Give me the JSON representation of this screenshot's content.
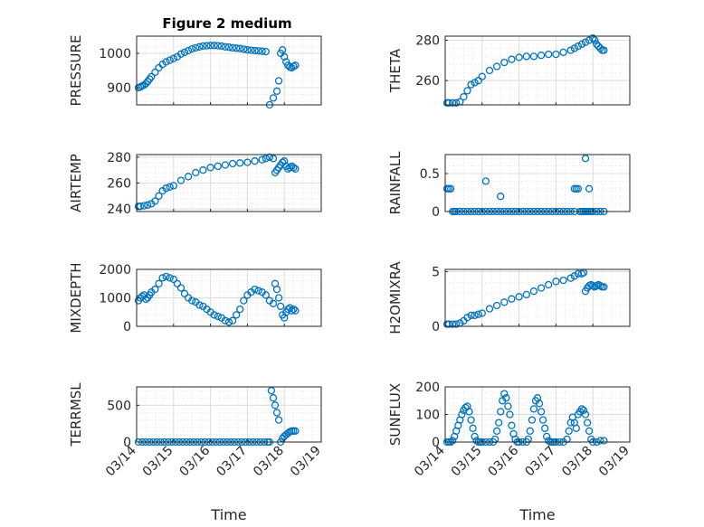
{
  "chart_data": [
    {
      "type": "scatter",
      "title": "Figure 2 medium",
      "ylabel": "PRESSURE",
      "xlim": [
        0,
        5
      ],
      "ylim": [
        850,
        1050
      ],
      "yticks": [
        900,
        1000
      ],
      "x": [
        0.05,
        0.1,
        0.15,
        0.2,
        0.25,
        0.3,
        0.35,
        0.4,
        0.5,
        0.6,
        0.7,
        0.8,
        0.9,
        1.0,
        1.1,
        1.2,
        1.3,
        1.4,
        1.5,
        1.6,
        1.7,
        1.8,
        1.9,
        2.0,
        2.1,
        2.2,
        2.3,
        2.4,
        2.5,
        2.6,
        2.7,
        2.8,
        2.9,
        3.0,
        3.1,
        3.2,
        3.3,
        3.4,
        3.5,
        3.6,
        3.7,
        3.8,
        3.85,
        3.9,
        3.95,
        4.0,
        4.05,
        4.1,
        4.15,
        4.2,
        4.25,
        4.3
      ],
      "y": [
        900,
        902,
        905,
        908,
        912,
        918,
        925,
        932,
        945,
        958,
        968,
        975,
        980,
        985,
        990,
        998,
        1003,
        1008,
        1013,
        1016,
        1019,
        1021,
        1022,
        1023,
        1023,
        1022,
        1021,
        1019,
        1018,
        1016,
        1015,
        1014,
        1012,
        1010,
        1009,
        1008,
        1007,
        1006,
        1005,
        850,
        870,
        890,
        920,
        1000,
        1010,
        990,
        975,
        965,
        960,
        958,
        962,
        965
      ]
    },
    {
      "type": "scatter",
      "ylabel": "THETA",
      "xlim": [
        0,
        5
      ],
      "ylim": [
        248,
        282
      ],
      "yticks": [
        260,
        280
      ],
      "x": [
        0.05,
        0.1,
        0.2,
        0.3,
        0.4,
        0.5,
        0.6,
        0.7,
        0.8,
        0.9,
        1.0,
        1.2,
        1.4,
        1.6,
        1.8,
        2.0,
        2.2,
        2.4,
        2.6,
        2.8,
        3.0,
        3.2,
        3.4,
        3.5,
        3.6,
        3.7,
        3.8,
        3.9,
        4.0,
        4.05,
        4.1,
        4.15,
        4.2,
        4.25,
        4.3
      ],
      "y": [
        249,
        249,
        249,
        249,
        249.5,
        252,
        255,
        258,
        259,
        260,
        262,
        265,
        267,
        269,
        270.5,
        271.5,
        272,
        272,
        272.5,
        273,
        273,
        274,
        275,
        276,
        277,
        278,
        279,
        280,
        281,
        280,
        278,
        277,
        276,
        275,
        275
      ]
    },
    {
      "type": "scatter",
      "ylabel": "AIRTEMP",
      "xlim": [
        0,
        5
      ],
      "ylim": [
        238,
        282
      ],
      "yticks": [
        240,
        260,
        280
      ],
      "x": [
        0.05,
        0.1,
        0.2,
        0.3,
        0.4,
        0.5,
        0.6,
        0.7,
        0.8,
        0.9,
        1.0,
        1.2,
        1.4,
        1.6,
        1.8,
        2.0,
        2.2,
        2.4,
        2.6,
        2.8,
        3.0,
        3.2,
        3.4,
        3.5,
        3.6,
        3.7,
        3.75,
        3.8,
        3.85,
        3.9,
        3.95,
        4.0,
        4.05,
        4.1,
        4.15,
        4.2,
        4.25,
        4.3
      ],
      "y": [
        242,
        242,
        242.5,
        243,
        244,
        246,
        250,
        254,
        256,
        257,
        258,
        262,
        265,
        268,
        270,
        272,
        273,
        274,
        275,
        275.5,
        276,
        277,
        278,
        279,
        280,
        279,
        268,
        270,
        272,
        274,
        276,
        277,
        273,
        271,
        272,
        273,
        272,
        271
      ]
    },
    {
      "type": "scatter",
      "ylabel": "RAINFALL",
      "xlim": [
        0,
        5
      ],
      "ylim": [
        0,
        0.75
      ],
      "yticks": [
        0,
        0.5
      ],
      "x": [
        0.05,
        0.1,
        0.15,
        0.2,
        0.25,
        0.3,
        0.4,
        0.5,
        0.6,
        0.7,
        0.8,
        0.9,
        1.0,
        1.1,
        1.2,
        1.3,
        1.4,
        1.5,
        1.6,
        1.7,
        1.8,
        1.9,
        2.0,
        2.1,
        2.2,
        2.3,
        2.4,
        2.5,
        2.6,
        2.7,
        2.8,
        2.9,
        3.0,
        3.1,
        3.2,
        3.3,
        3.4,
        3.5,
        3.6,
        3.65,
        3.7,
        3.75,
        3.8,
        3.85,
        3.9,
        3.95,
        4.0,
        4.1,
        4.2,
        4.3,
        1.1,
        1.5,
        3.5,
        3.55,
        3.8,
        3.9
      ],
      "y": [
        0.3,
        0.3,
        0.3,
        0,
        0,
        0,
        0,
        0,
        0,
        0,
        0,
        0,
        0,
        0,
        0,
        0,
        0,
        0,
        0,
        0,
        0,
        0,
        0,
        0,
        0,
        0,
        0,
        0,
        0,
        0,
        0,
        0,
        0,
        0,
        0,
        0,
        0,
        0,
        0.3,
        0,
        0,
        0,
        0,
        0,
        0,
        0,
        0,
        0,
        0,
        0,
        0.4,
        0.2,
        0.3,
        0.3,
        0.7,
        0.3
      ]
    },
    {
      "type": "scatter",
      "ylabel": "MIXDEPTH",
      "xlim": [
        0,
        5
      ],
      "ylim": [
        0,
        2000
      ],
      "yticks": [
        0,
        1000,
        2000
      ],
      "x": [
        0.05,
        0.1,
        0.15,
        0.2,
        0.25,
        0.3,
        0.35,
        0.4,
        0.5,
        0.6,
        0.7,
        0.8,
        0.9,
        1.0,
        1.1,
        1.2,
        1.3,
        1.4,
        1.5,
        1.6,
        1.7,
        1.8,
        1.9,
        2.0,
        2.1,
        2.2,
        2.3,
        2.4,
        2.5,
        2.6,
        2.7,
        2.8,
        2.9,
        3.0,
        3.1,
        3.2,
        3.3,
        3.4,
        3.5,
        3.6,
        3.7,
        3.75,
        3.8,
        3.85,
        3.9,
        3.95,
        4.0,
        4.05,
        4.1,
        4.15,
        4.2,
        4.25,
        4.3
      ],
      "y": [
        900,
        1000,
        1050,
        1100,
        950,
        1000,
        1100,
        1200,
        1300,
        1500,
        1700,
        1750,
        1700,
        1650,
        1500,
        1350,
        1150,
        1000,
        900,
        850,
        750,
        700,
        600,
        500,
        400,
        350,
        300,
        200,
        150,
        200,
        400,
        600,
        900,
        1100,
        1200,
        1300,
        1250,
        1200,
        1100,
        900,
        800,
        1500,
        1300,
        1000,
        700,
        400,
        300,
        500,
        600,
        650,
        550,
        600,
        550
      ]
    },
    {
      "type": "scatter",
      "ylabel": "H2OMIXRA",
      "xlim": [
        0,
        5
      ],
      "ylim": [
        0,
        5.2
      ],
      "yticks": [
        0,
        5
      ],
      "x": [
        0.05,
        0.1,
        0.2,
        0.3,
        0.4,
        0.5,
        0.6,
        0.7,
        0.8,
        0.9,
        1.0,
        1.2,
        1.4,
        1.6,
        1.8,
        2.0,
        2.2,
        2.4,
        2.6,
        2.8,
        3.0,
        3.2,
        3.4,
        3.5,
        3.6,
        3.7,
        3.75,
        3.8,
        3.85,
        3.9,
        3.95,
        4.0,
        4.05,
        4.1,
        4.15,
        4.2,
        4.25,
        4.3
      ],
      "y": [
        0.2,
        0.2,
        0.2,
        0.2,
        0.3,
        0.5,
        0.8,
        1.0,
        1.0,
        1.1,
        1.2,
        1.6,
        1.9,
        2.2,
        2.5,
        2.7,
        2.9,
        3.2,
        3.5,
        3.8,
        4.1,
        4.2,
        4.4,
        4.6,
        4.8,
        4.8,
        4.9,
        3.2,
        3.5,
        3.7,
        3.8,
        3.7,
        3.6,
        3.7,
        3.8,
        3.7,
        3.6,
        3.6
      ]
    },
    {
      "type": "scatter",
      "ylabel": "TERRMSL",
      "xlabel": "Time",
      "xlim": [
        0,
        5
      ],
      "ylim": [
        0,
        750
      ],
      "yticks": [
        0,
        500
      ],
      "xtick_labels": [
        "03/14",
        "03/15",
        "03/16",
        "03/17",
        "03/18",
        "03/19"
      ],
      "x": [
        0.05,
        0.15,
        0.25,
        0.35,
        0.45,
        0.55,
        0.65,
        0.75,
        0.85,
        0.95,
        1.05,
        1.15,
        1.25,
        1.35,
        1.45,
        1.55,
        1.65,
        1.75,
        1.85,
        1.95,
        2.05,
        2.15,
        2.25,
        2.35,
        2.45,
        2.55,
        2.65,
        2.75,
        2.85,
        2.95,
        3.05,
        3.15,
        3.25,
        3.35,
        3.45,
        3.55,
        3.6,
        3.65,
        3.7,
        3.75,
        3.8,
        3.85,
        3.9,
        3.95,
        4.0,
        4.05,
        4.1,
        4.15,
        4.2,
        4.25,
        4.3
      ],
      "y": [
        0,
        0,
        0,
        0,
        0,
        0,
        0,
        0,
        0,
        0,
        0,
        0,
        0,
        0,
        0,
        0,
        0,
        0,
        0,
        0,
        0,
        0,
        0,
        0,
        0,
        0,
        0,
        0,
        0,
        0,
        0,
        0,
        0,
        0,
        0,
        0,
        0,
        700,
        600,
        500,
        400,
        300,
        0,
        50,
        80,
        100,
        120,
        140,
        150,
        150,
        150
      ]
    },
    {
      "type": "scatter",
      "ylabel": "SUNFLUX",
      "xlabel": "Time",
      "xlim": [
        0,
        5
      ],
      "ylim": [
        0,
        200
      ],
      "yticks": [
        0,
        100,
        200
      ],
      "xtick_labels": [
        "03/14",
        "03/15",
        "03/16",
        "03/17",
        "03/18",
        "03/19"
      ],
      "x": [
        0.05,
        0.1,
        0.15,
        0.2,
        0.25,
        0.3,
        0.35,
        0.4,
        0.45,
        0.5,
        0.55,
        0.6,
        0.65,
        0.7,
        0.75,
        0.8,
        0.85,
        0.9,
        0.95,
        1.0,
        1.1,
        1.2,
        1.3,
        1.35,
        1.4,
        1.45,
        1.5,
        1.55,
        1.6,
        1.65,
        1.7,
        1.75,
        1.8,
        1.85,
        1.9,
        1.95,
        2.0,
        2.1,
        2.2,
        2.25,
        2.3,
        2.35,
        2.4,
        2.45,
        2.5,
        2.55,
        2.6,
        2.65,
        2.7,
        2.75,
        2.8,
        2.85,
        2.9,
        2.95,
        3.0,
        3.1,
        3.2,
        3.3,
        3.35,
        3.4,
        3.45,
        3.5,
        3.55,
        3.6,
        3.65,
        3.7,
        3.75,
        3.8,
        3.85,
        3.9,
        3.95,
        4.0,
        4.1,
        4.2,
        4.3
      ],
      "y": [
        0,
        0,
        0,
        5,
        20,
        40,
        60,
        80,
        100,
        115,
        125,
        130,
        110,
        80,
        50,
        20,
        5,
        0,
        0,
        0,
        0,
        0,
        0,
        10,
        40,
        70,
        110,
        150,
        175,
        160,
        130,
        100,
        60,
        30,
        10,
        0,
        0,
        0,
        0,
        10,
        40,
        80,
        120,
        150,
        160,
        140,
        110,
        80,
        50,
        20,
        5,
        0,
        0,
        0,
        0,
        0,
        0,
        10,
        40,
        70,
        90,
        70,
        50,
        100,
        110,
        120,
        115,
        100,
        70,
        40,
        10,
        0,
        0,
        5,
        5
      ]
    }
  ]
}
